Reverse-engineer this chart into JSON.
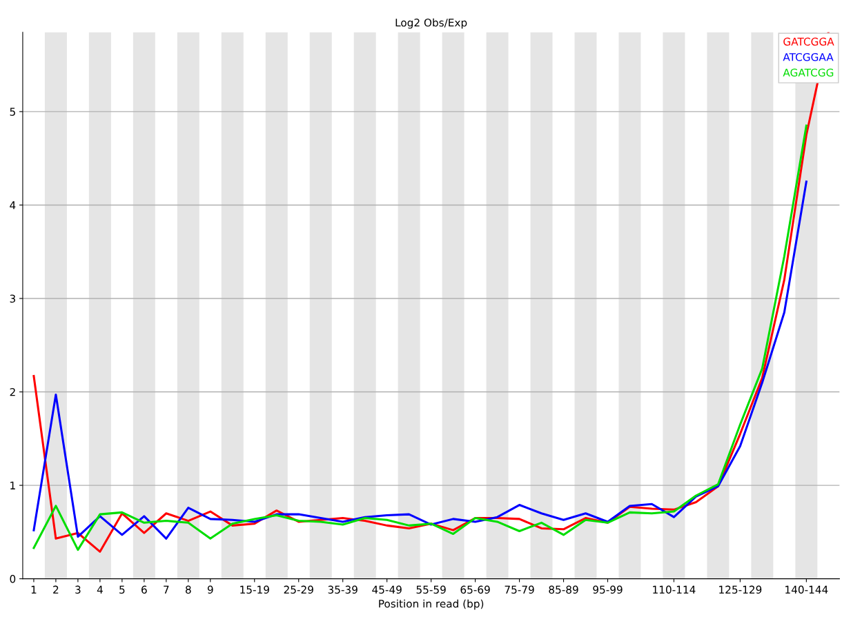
{
  "chart_data": {
    "type": "line",
    "title": "Log2 Obs/Exp",
    "xlabel": "Position in read (bp)",
    "categories": [
      "1",
      "2",
      "3",
      "4",
      "5",
      "6",
      "7",
      "8",
      "9",
      null,
      "15-19",
      null,
      "25-29",
      null,
      "35-39",
      null,
      "45-49",
      null,
      "55-59",
      null,
      "65-69",
      null,
      "75-79",
      null,
      "85-89",
      null,
      "95-99",
      null,
      null,
      "110-114",
      null,
      null,
      "125-129",
      null,
      null,
      "140-144",
      null
    ],
    "series": [
      {
        "name": "GATCGGA",
        "color": "#ff0000",
        "values": [
          2.17,
          0.43,
          0.49,
          0.29,
          0.7,
          0.49,
          0.7,
          0.62,
          0.72,
          0.57,
          0.59,
          0.73,
          0.61,
          0.63,
          0.65,
          0.62,
          0.57,
          0.54,
          0.59,
          0.52,
          0.65,
          0.65,
          0.64,
          0.54,
          0.53,
          0.65,
          0.6,
          0.77,
          0.75,
          0.74,
          0.82,
          0.99,
          1.55,
          2.15,
          3.2,
          4.75,
          5.85
        ]
      },
      {
        "name": "ATCGGAA",
        "color": "#0000ff",
        "values": [
          0.52,
          1.97,
          0.45,
          0.67,
          0.47,
          0.67,
          0.43,
          0.76,
          0.64,
          0.63,
          0.61,
          0.69,
          0.69,
          0.65,
          0.61,
          0.66,
          0.68,
          0.69,
          0.58,
          0.64,
          0.61,
          0.66,
          0.79,
          0.7,
          0.63,
          0.7,
          0.61,
          0.78,
          0.8,
          0.66,
          0.88,
          0.99,
          1.42,
          2.1,
          2.85,
          4.25,
          null
        ]
      },
      {
        "name": "AGATCGG",
        "color": "#00dd00",
        "values": [
          0.33,
          0.78,
          0.31,
          0.69,
          0.71,
          0.6,
          0.62,
          0.6,
          0.43,
          0.59,
          0.64,
          0.68,
          0.62,
          0.61,
          0.58,
          0.65,
          0.63,
          0.57,
          0.59,
          0.48,
          0.65,
          0.61,
          0.51,
          0.6,
          0.47,
          0.63,
          0.6,
          0.71,
          0.7,
          0.72,
          0.89,
          1.01,
          1.65,
          2.25,
          3.45,
          4.85,
          null
        ]
      }
    ],
    "ylim": [
      0,
      5.85
    ],
    "yticks": [
      0,
      1,
      2,
      3,
      4,
      5
    ],
    "grid": "y",
    "legend": "top right"
  }
}
